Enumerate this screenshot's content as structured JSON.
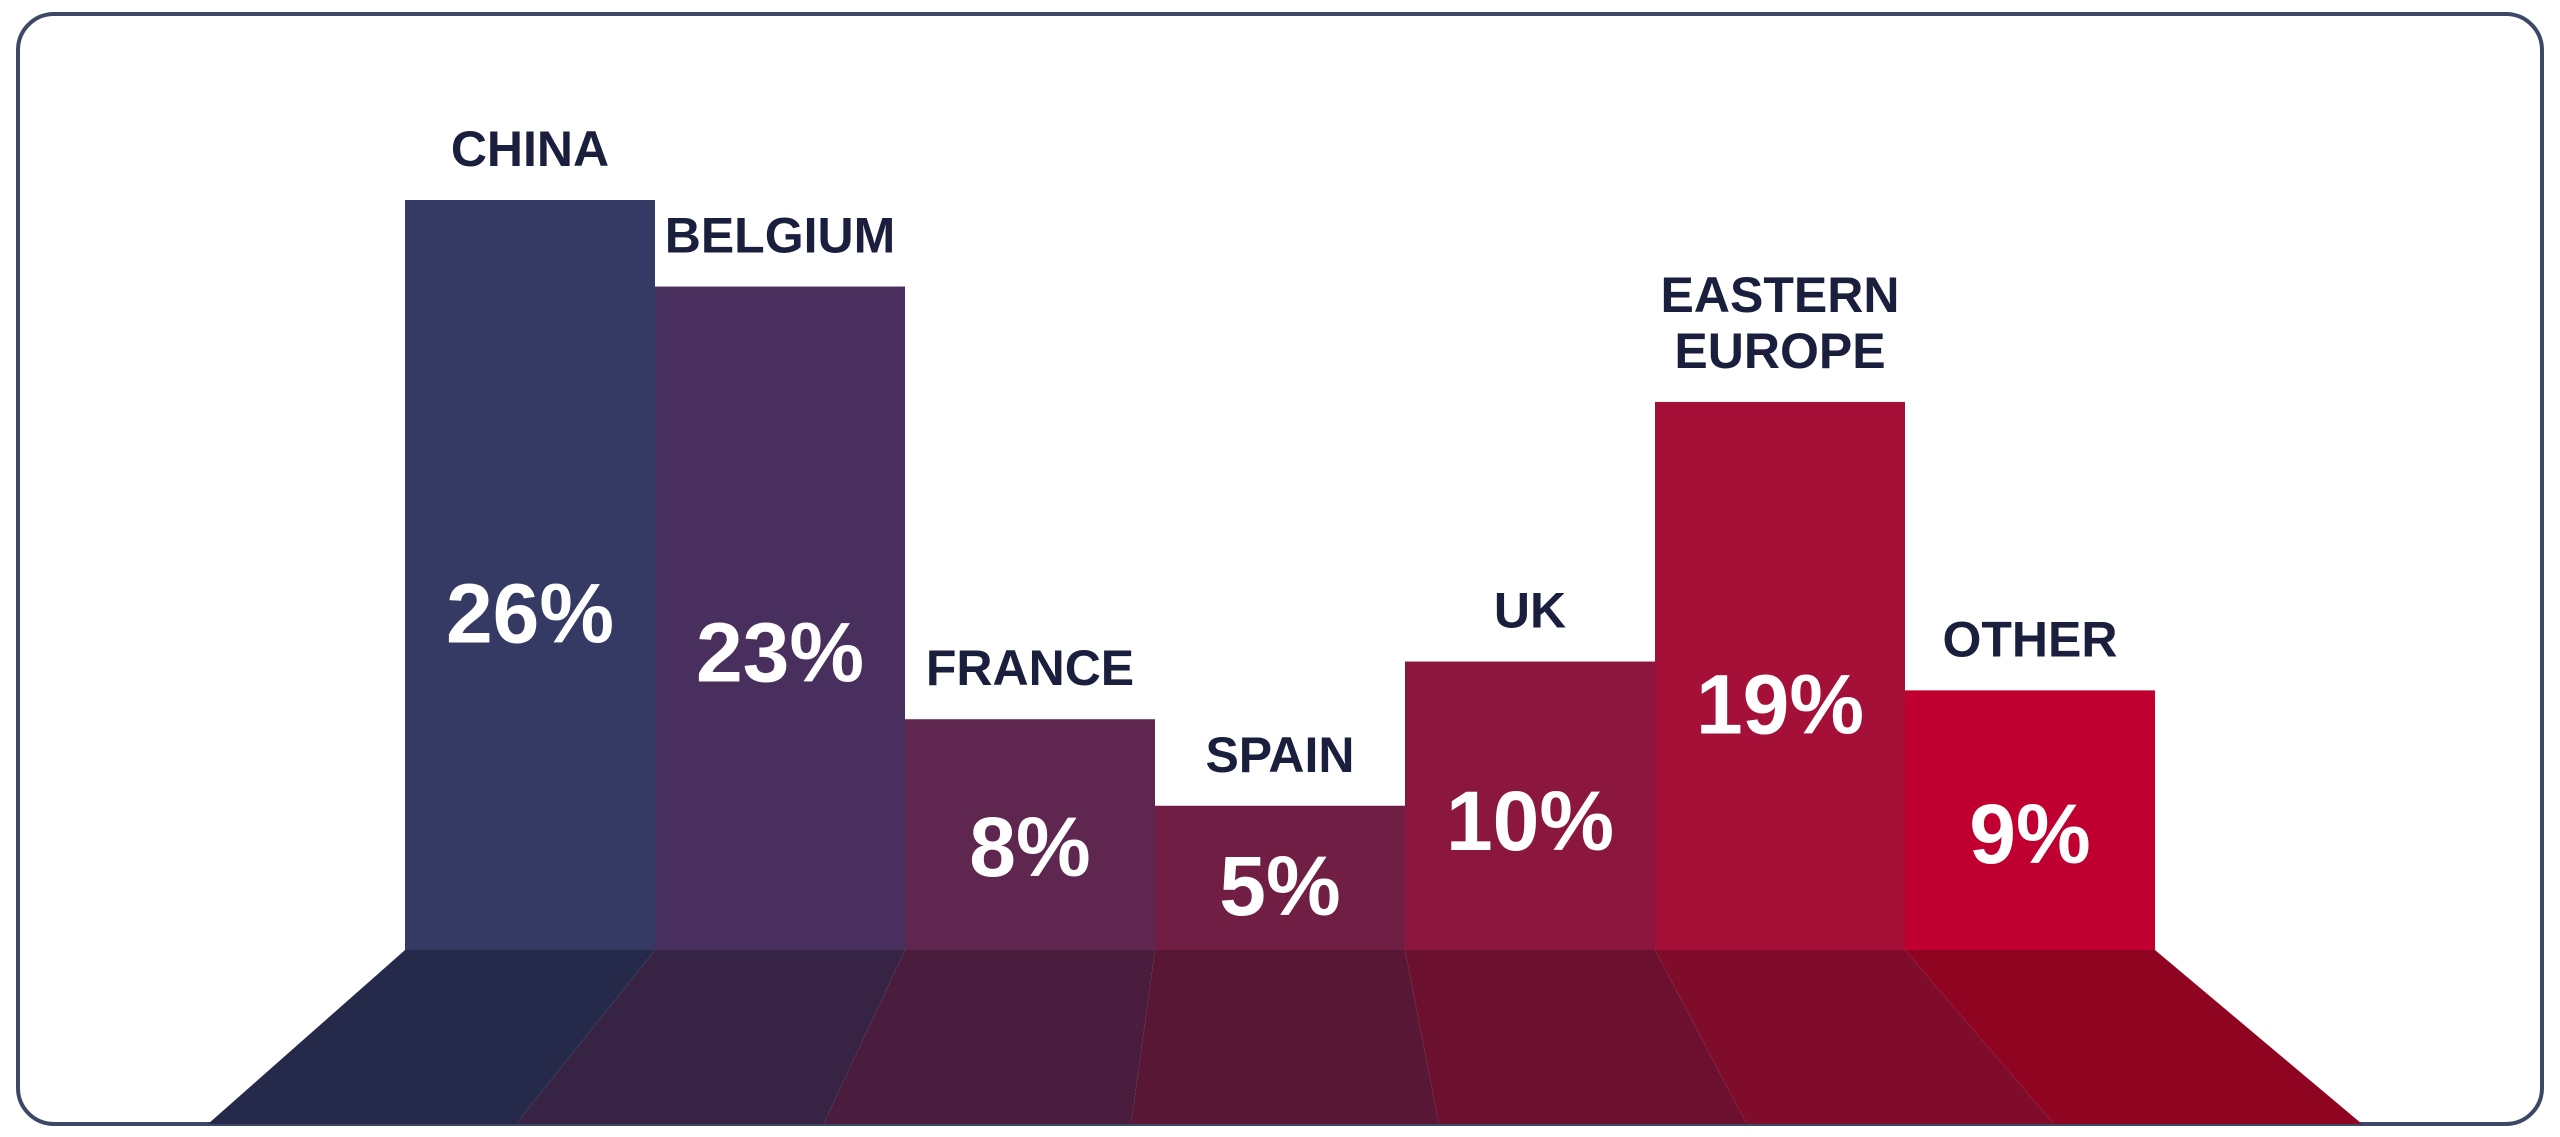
{
  "chart_data": {
    "type": "bar",
    "categories": [
      [
        "CHINA"
      ],
      [
        "BELGIUM"
      ],
      [
        "FRANCE"
      ],
      [
        "SPAIN"
      ],
      [
        "UK"
      ],
      [
        "EASTERN",
        "EUROPE"
      ],
      [
        "OTHER"
      ]
    ],
    "values": [
      26,
      23,
      8,
      5,
      10,
      19,
      9
    ],
    "value_labels": [
      "26%",
      "23%",
      "8%",
      "5%",
      "10%",
      "19%",
      "9%"
    ],
    "title": "",
    "xlabel": "",
    "ylabel": "",
    "ylim": [
      0,
      26
    ],
    "grid": false,
    "colors": [
      "#343a63",
      "#492f5d",
      "#5f2650",
      "#701e44",
      "#8b173f",
      "#a51039",
      "#bf0030"
    ],
    "floor_colors": [
      "#252a4a",
      "#372444",
      "#4a1c3d",
      "#581734",
      "#6b112f",
      "#7f0c2b",
      "#8f0421"
    ]
  }
}
